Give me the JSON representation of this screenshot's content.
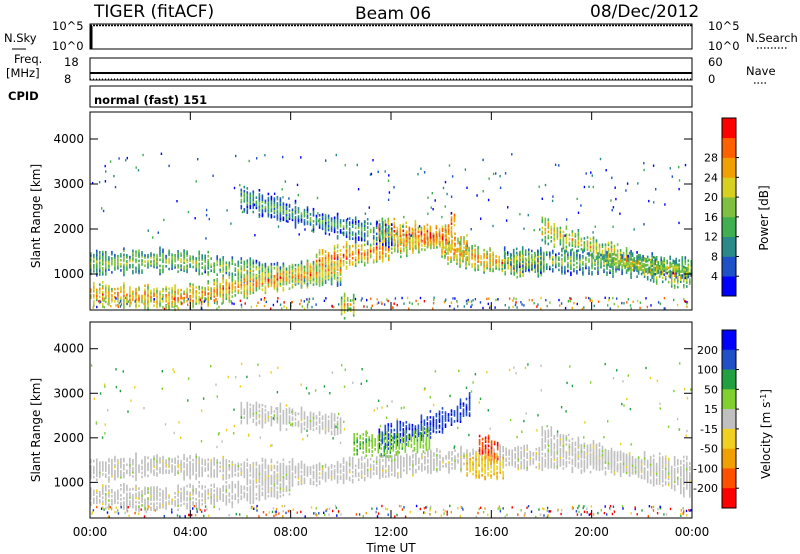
{
  "header": {
    "radar": "TIGER (fitACF)",
    "beam": "Beam 06",
    "date": "08/Dec/2012"
  },
  "status_panels": {
    "nsky_label": "N.Sky",
    "nsearch_label": "N.Search",
    "nsky_ticks": [
      "10^5",
      "10^0"
    ],
    "nsearch_ticks": [
      "10^5",
      "10^0"
    ],
    "freq_label_line1": "Freq.",
    "freq_label_line2": "[MHz]",
    "freq_ticks": [
      "18",
      "8"
    ],
    "nave_label": "Nave",
    "nave_ticks": [
      "60",
      "0"
    ],
    "cpid_label": "CPID",
    "cpid_value": "normal (fast) 151"
  },
  "chart_data": [
    {
      "type": "heatmap",
      "name": "power",
      "xlabel": "Time UT",
      "ylabel": "Slant Range [km]",
      "x_ticks": [
        "00:00",
        "04:00",
        "08:00",
        "12:00",
        "16:00",
        "20:00",
        "00:00"
      ],
      "y_ticks": [
        "1000",
        "2000",
        "3000",
        "4000"
      ],
      "xlim": [
        0,
        24
      ],
      "ylim": [
        200,
        4600
      ],
      "colorbar_label": "Power [dB]",
      "colorbar_ticks": [
        "4",
        "8",
        "12",
        "16",
        "20",
        "24",
        "28"
      ],
      "colorbar_range": [
        0,
        30
      ],
      "colors": [
        "#0000ff",
        "#1e50c8",
        "#2a8a8a",
        "#3faf50",
        "#80c040",
        "#d8d020",
        "#f0a000",
        "#ff6000",
        "#ff0000"
      ],
      "bands": [
        {
          "t": [
            0.0,
            2.0,
            4.0,
            6.0,
            8.0,
            10.0
          ],
          "r": [
            1250,
            1300,
            1300,
            1100,
            1000,
            1050
          ],
          "value": 16
        },
        {
          "t": [
            0.0,
            1.5,
            3.0,
            4.5,
            6.5,
            8.5,
            10.0
          ],
          "r": [
            580,
            520,
            480,
            560,
            800,
            1000,
            1100
          ],
          "value": 23
        },
        {
          "t": [
            9.0,
            11.0,
            12.5,
            14.0,
            15.0
          ],
          "r": [
            1300,
            1500,
            1700,
            1750,
            1600
          ],
          "value": 24
        },
        {
          "t": [
            11.5,
            12.5,
            14.0,
            14.5
          ],
          "r": [
            2000,
            1900,
            1850,
            2200
          ],
          "value": 26
        },
        {
          "t": [
            14.0,
            15.5,
            17.0,
            18.0
          ],
          "r": [
            1500,
            1350,
            1200,
            1250
          ],
          "value": 22
        },
        {
          "t": [
            18.0,
            19.5,
            21.0,
            22.5,
            24.0
          ],
          "r": [
            2000,
            1700,
            1400,
            1100,
            900
          ],
          "value": 20
        },
        {
          "t": [
            16.5,
            18.5,
            20.5,
            22.5,
            24.0
          ],
          "r": [
            1350,
            1300,
            1250,
            1200,
            1150
          ],
          "value": 15
        },
        {
          "t": [
            6.0,
            7.5,
            9.0,
            10.5,
            12.0
          ],
          "r": [
            2700,
            2450,
            2200,
            2000,
            1900
          ],
          "value": 12
        },
        {
          "t": [
            10.0,
            10.5
          ],
          "r": [
            300,
            320
          ],
          "value": 22
        }
      ]
    },
    {
      "type": "heatmap",
      "name": "velocity",
      "xlabel": "Time UT",
      "ylabel": "Slant Range [km]",
      "x_ticks": [
        "00:00",
        "04:00",
        "08:00",
        "12:00",
        "16:00",
        "20:00",
        "00:00"
      ],
      "y_ticks": [
        "1000",
        "2000",
        "3000",
        "4000"
      ],
      "xlim": [
        0,
        24
      ],
      "ylim": [
        200,
        4600
      ],
      "colorbar_label": "Velocity [m s^-1]",
      "colorbar_ticks": [
        "200",
        "100",
        "50",
        "15",
        "-15",
        "-50",
        "-100",
        "-200"
      ],
      "colorbar_range": [
        -250,
        250
      ],
      "colors": [
        "#0000ff",
        "#2050c8",
        "#20a040",
        "#80d030",
        "#c0c0c0",
        "#f0d020",
        "#f0a000",
        "#ff5000",
        "#ff0000"
      ],
      "bands": [
        {
          "t": [
            0.0,
            3.0,
            6.0,
            9.0,
            12.0,
            16.0,
            20.0,
            24.0
          ],
          "r": [
            1300,
            1400,
            1300,
            1200,
            1400,
            1600,
            1500,
            1300
          ],
          "value": 0
        },
        {
          "t": [
            0.0,
            3.0,
            6.0,
            8.0
          ],
          "r": [
            700,
            650,
            800,
            1000
          ],
          "value": 0
        },
        {
          "t": [
            18.0,
            20.0,
            22.0,
            24.0
          ],
          "r": [
            2000,
            1700,
            1300,
            900
          ],
          "value": 0
        },
        {
          "t": [
            11.5,
            13.0,
            14.5,
            15.2
          ],
          "r": [
            2000,
            2200,
            2500,
            2800
          ],
          "value": 180
        },
        {
          "t": [
            10.5,
            12.0,
            13.5
          ],
          "r": [
            1900,
            1850,
            2000
          ],
          "value": 60
        },
        {
          "t": [
            15.5,
            16.3
          ],
          "r": [
            1850,
            1700
          ],
          "value": -180
        },
        {
          "t": [
            15.0,
            16.5
          ],
          "r": [
            1400,
            1350
          ],
          "value": -70
        },
        {
          "t": [
            6.0,
            8.0,
            10.0
          ],
          "r": [
            2600,
            2450,
            2300
          ],
          "value": 0
        }
      ]
    }
  ]
}
